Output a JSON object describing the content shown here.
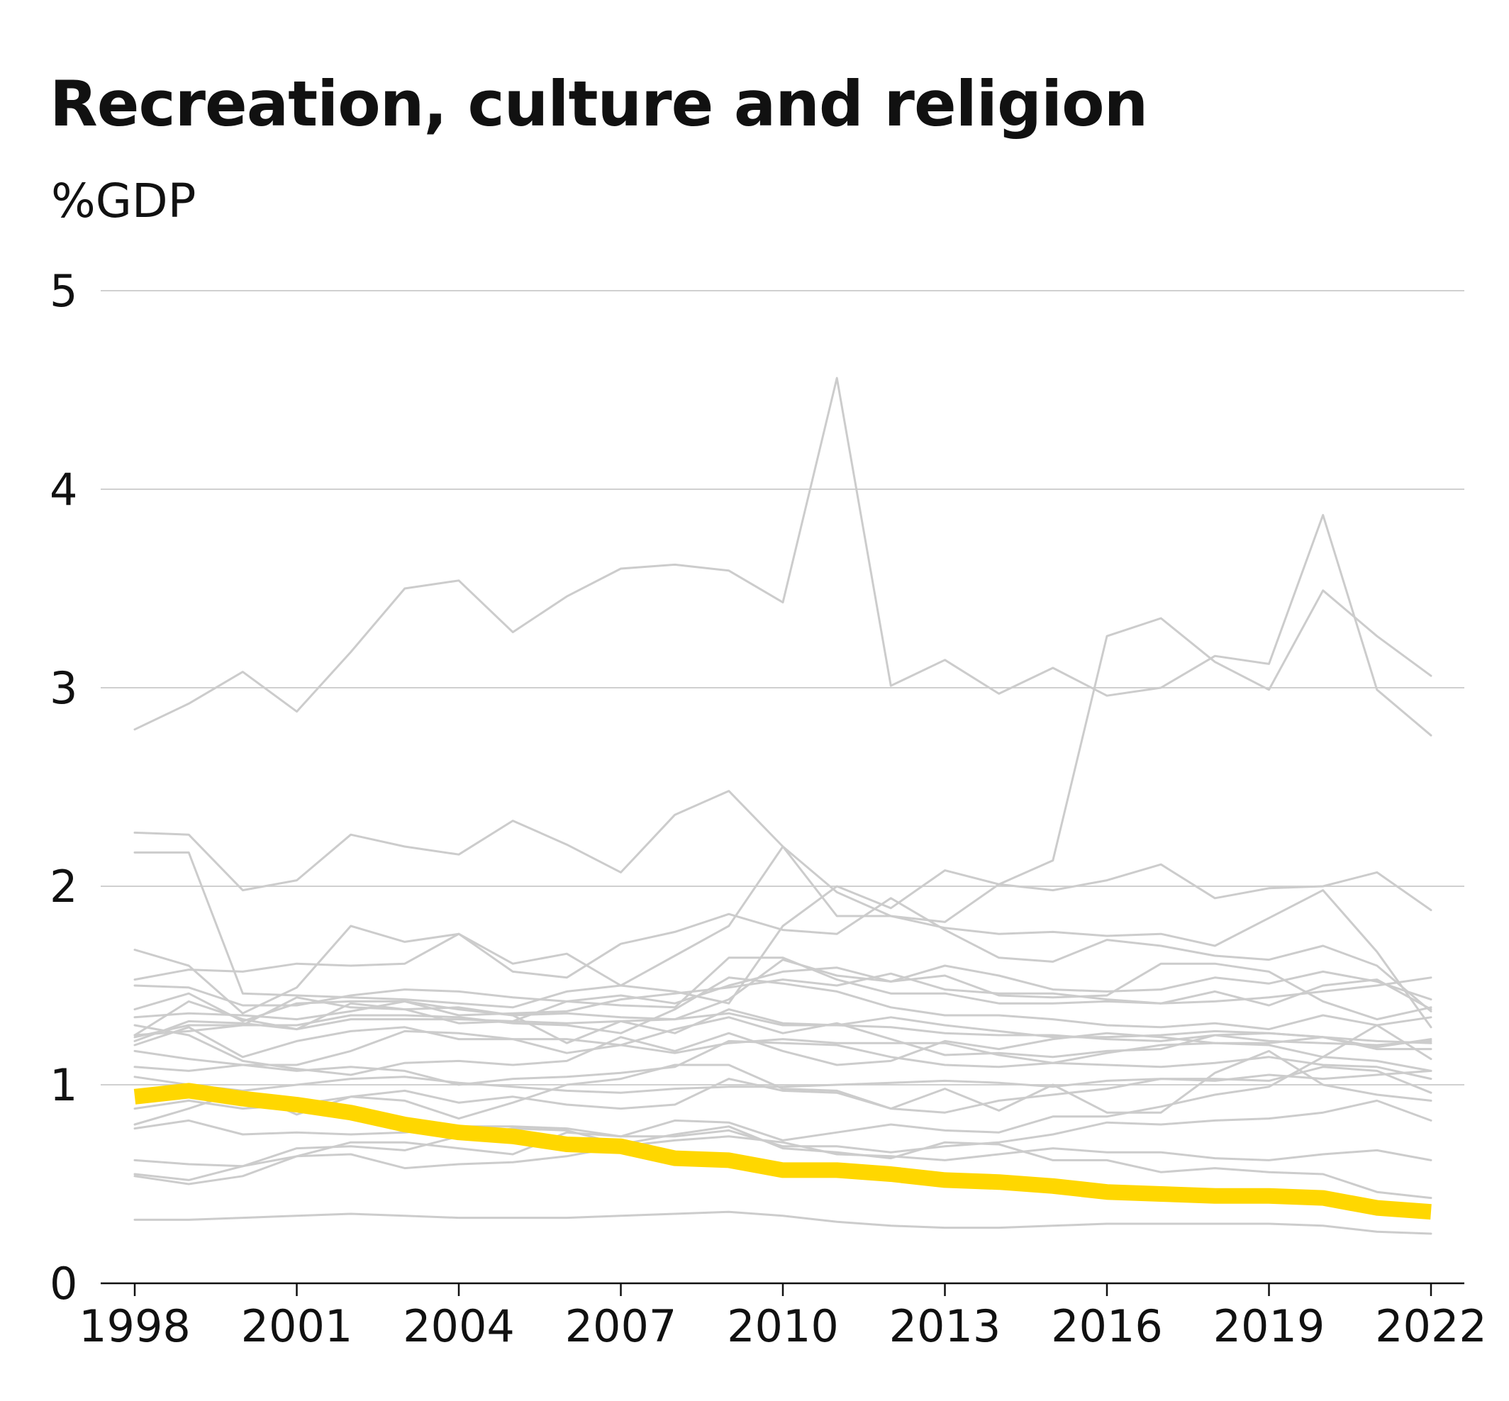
{
  "chart_data": {
    "type": "line",
    "title": "Recreation, culture and religion",
    "subtitle": "%GDP",
    "xlabel": "",
    "ylabel": "",
    "x": [
      1998,
      1999,
      2000,
      2001,
      2002,
      2003,
      2004,
      2005,
      2006,
      2007,
      2008,
      2009,
      2010,
      2011,
      2012,
      2013,
      2014,
      2015,
      2016,
      2017,
      2018,
      2019,
      2020,
      2021,
      2022
    ],
    "xticks": [
      1998,
      2001,
      2004,
      2007,
      2010,
      2013,
      2016,
      2019,
      2022
    ],
    "yticks": [
      0,
      1,
      2,
      3,
      4,
      5
    ],
    "ylim": [
      0,
      5
    ],
    "grid": true,
    "background_color": "#cccccc",
    "highlight_color": "#ffd700",
    "series": [
      {
        "values": [
          2.79,
          2.92,
          3.08,
          2.88,
          3.18,
          3.5,
          3.54,
          3.28,
          3.46,
          3.6,
          3.62,
          3.59,
          3.43,
          4.56,
          3.01,
          3.14,
          2.97,
          3.1,
          2.96,
          3.0,
          3.16,
          3.12,
          3.87,
          2.99,
          2.76
        ]
      },
      {
        "values": [
          2.27,
          2.26,
          1.98,
          2.03,
          2.26,
          2.2,
          2.16,
          2.33,
          2.21,
          2.07,
          2.36,
          2.48,
          2.2,
          1.85,
          1.85,
          1.82,
          2.01,
          2.13,
          3.26,
          3.35,
          3.13,
          2.99,
          3.49,
          3.26,
          3.06
        ]
      },
      {
        "values": [
          2.17,
          2.17,
          1.46,
          1.45,
          1.44,
          1.43,
          1.41,
          1.39,
          1.47,
          1.5,
          1.47,
          1.41,
          1.8,
          2.0,
          1.89,
          2.08,
          2.01,
          1.98,
          2.03,
          2.11,
          1.94,
          1.99,
          2.0,
          2.07,
          1.88
        ]
      },
      {
        "values": [
          1.68,
          1.6,
          1.36,
          1.49,
          1.8,
          1.72,
          1.76,
          1.61,
          1.66,
          1.5,
          1.65,
          1.8,
          2.2,
          1.97,
          1.85,
          1.79,
          1.76,
          1.77,
          1.75,
          1.76,
          1.7,
          1.84,
          1.98,
          1.67,
          1.29
        ]
      },
      {
        "values": [
          1.53,
          1.58,
          1.57,
          1.61,
          1.6,
          1.61,
          1.76,
          1.57,
          1.54,
          1.71,
          1.77,
          1.86,
          1.78,
          1.76,
          1.94,
          1.78,
          1.64,
          1.62,
          1.73,
          1.7,
          1.65,
          1.63,
          1.7,
          1.6,
          1.37
        ]
      },
      {
        "values": [
          1.5,
          1.49,
          1.4,
          1.4,
          1.45,
          1.48,
          1.47,
          1.44,
          1.42,
          1.45,
          1.41,
          1.5,
          1.57,
          1.59,
          1.52,
          1.6,
          1.55,
          1.48,
          1.47,
          1.48,
          1.54,
          1.51,
          1.57,
          1.52,
          1.43
        ]
      },
      {
        "values": [
          1.38,
          1.46,
          1.32,
          1.41,
          1.42,
          1.42,
          1.38,
          1.35,
          1.36,
          1.34,
          1.33,
          1.43,
          1.63,
          1.55,
          1.52,
          1.55,
          1.45,
          1.44,
          1.45,
          1.61,
          1.61,
          1.57,
          1.42,
          1.33,
          1.39
        ]
      },
      {
        "values": [
          1.34,
          1.36,
          1.35,
          1.33,
          1.37,
          1.42,
          1.35,
          1.36,
          1.37,
          1.43,
          1.46,
          1.49,
          1.53,
          1.5,
          1.56,
          1.48,
          1.46,
          1.46,
          1.43,
          1.41,
          1.42,
          1.44,
          1.47,
          1.5,
          1.54
        ]
      },
      {
        "values": [
          1.25,
          1.42,
          1.33,
          1.28,
          1.41,
          1.38,
          1.31,
          1.32,
          1.42,
          1.4,
          1.39,
          1.64,
          1.64,
          1.53,
          1.46,
          1.46,
          1.41,
          1.41,
          1.42,
          1.41,
          1.47,
          1.4,
          1.5,
          1.53,
          1.38
        ]
      },
      {
        "values": [
          1.24,
          1.3,
          1.3,
          1.3,
          1.35,
          1.35,
          1.34,
          1.31,
          1.3,
          1.26,
          1.38,
          1.54,
          1.51,
          1.47,
          1.39,
          1.35,
          1.35,
          1.33,
          1.3,
          1.29,
          1.31,
          1.28,
          1.35,
          1.3,
          1.34
        ]
      },
      {
        "values": [
          1.22,
          1.32,
          1.31,
          1.28,
          1.33,
          1.33,
          1.33,
          1.32,
          1.31,
          1.32,
          1.33,
          1.36,
          1.3,
          1.3,
          1.34,
          1.3,
          1.27,
          1.24,
          1.24,
          1.25,
          1.27,
          1.26,
          1.24,
          1.19,
          1.23
        ]
      },
      {
        "values": [
          1.25,
          1.27,
          1.3,
          1.44,
          1.39,
          1.38,
          1.39,
          1.35,
          1.21,
          1.32,
          1.26,
          1.38,
          1.31,
          1.3,
          1.29,
          1.26,
          1.25,
          1.25,
          1.23,
          1.22,
          1.25,
          1.22,
          1.21,
          1.2,
          1.22
        ]
      },
      {
        "values": [
          1.17,
          1.13,
          1.1,
          1.1,
          1.17,
          1.27,
          1.26,
          1.23,
          1.23,
          1.2,
          1.28,
          1.34,
          1.26,
          1.31,
          1.23,
          1.15,
          1.16,
          1.14,
          1.17,
          1.18,
          1.25,
          1.26,
          1.24,
          1.18,
          1.18
        ]
      },
      {
        "values": [
          1.2,
          1.29,
          1.14,
          1.22,
          1.27,
          1.29,
          1.23,
          1.23,
          1.16,
          1.2,
          1.16,
          1.21,
          1.23,
          1.21,
          1.21,
          1.21,
          1.15,
          1.11,
          1.16,
          1.2,
          1.21,
          1.21,
          1.24,
          1.22,
          1.21
        ]
      },
      {
        "values": [
          1.3,
          1.25,
          1.12,
          1.08,
          1.05,
          1.11,
          1.12,
          1.1,
          1.12,
          1.24,
          1.17,
          1.26,
          1.17,
          1.1,
          1.12,
          1.22,
          1.18,
          1.23,
          1.26,
          1.24,
          1.21,
          1.2,
          1.14,
          1.12,
          1.07
        ]
      },
      {
        "values": [
          1.09,
          1.07,
          1.1,
          1.07,
          1.09,
          1.07,
          1.0,
          1.03,
          1.04,
          1.06,
          1.09,
          1.22,
          1.21,
          1.2,
          1.14,
          1.1,
          1.09,
          1.11,
          1.1,
          1.09,
          1.11,
          1.14,
          1.1,
          1.09,
          1.03
        ]
      },
      {
        "values": [
          0.88,
          0.92,
          0.88,
          0.9,
          0.94,
          0.97,
          0.91,
          0.94,
          0.9,
          0.88,
          0.9,
          1.03,
          0.97,
          0.96,
          0.88,
          0.86,
          0.92,
          0.95,
          0.98,
          1.03,
          1.03,
          1.02,
          1.09,
          1.07,
          0.96
        ]
      },
      {
        "values": [
          1.04,
          1.0,
          0.97,
          1.0,
          1.03,
          1.04,
          1.01,
          0.99,
          0.97,
          0.96,
          0.98,
          0.99,
          0.99,
          1.0,
          1.01,
          1.02,
          1.01,
          0.99,
          1.02,
          1.03,
          1.02,
          1.05,
          1.03,
          1.05,
          1.07
        ]
      },
      {
        "values": [
          0.8,
          0.88,
          0.97,
          0.85,
          0.94,
          0.92,
          0.83,
          0.91,
          1.0,
          1.03,
          1.1,
          1.1,
          0.98,
          0.97,
          0.88,
          0.98,
          0.87,
          1.0,
          0.86,
          0.86,
          1.06,
          1.17,
          1.0,
          0.95,
          0.92
        ]
      },
      {
        "values": [
          0.78,
          0.82,
          0.75,
          0.76,
          0.75,
          0.76,
          0.79,
          0.79,
          0.78,
          0.74,
          0.82,
          0.81,
          0.72,
          0.76,
          0.8,
          0.77,
          0.76,
          0.84,
          0.84,
          0.89,
          0.95,
          0.99,
          1.14,
          1.3,
          1.13
        ]
      },
      {
        "values": [
          0.62,
          0.6,
          0.59,
          0.64,
          0.71,
          0.71,
          0.68,
          0.65,
          0.76,
          0.74,
          0.74,
          0.77,
          0.69,
          0.69,
          0.66,
          0.69,
          0.71,
          0.75,
          0.81,
          0.8,
          0.82,
          0.83,
          0.86,
          0.92,
          0.82
        ]
      },
      {
        "values": [
          0.55,
          0.52,
          0.59,
          0.68,
          0.69,
          0.67,
          0.74,
          0.78,
          0.77,
          0.7,
          0.75,
          0.79,
          0.68,
          0.66,
          0.63,
          0.71,
          0.7,
          0.62,
          0.62,
          0.56,
          0.58,
          0.56,
          0.55,
          0.46,
          0.43
        ]
      },
      {
        "values": [
          0.54,
          0.5,
          0.54,
          0.64,
          0.65,
          0.58,
          0.6,
          0.61,
          0.64,
          0.69,
          0.72,
          0.74,
          0.71,
          0.65,
          0.64,
          0.62,
          0.65,
          0.68,
          0.66,
          0.66,
          0.63,
          0.62,
          0.65,
          0.67,
          0.62
        ]
      },
      {
        "values": [
          0.32,
          0.32,
          0.33,
          0.34,
          0.35,
          0.34,
          0.33,
          0.33,
          0.33,
          0.34,
          0.35,
          0.36,
          0.34,
          0.31,
          0.29,
          0.28,
          0.28,
          0.29,
          0.3,
          0.3,
          0.3,
          0.3,
          0.29,
          0.26,
          0.25
        ]
      },
      {
        "values": [
          0.94,
          0.97,
          0.93,
          0.9,
          0.86,
          0.8,
          0.76,
          0.74,
          0.7,
          0.69,
          0.63,
          0.62,
          0.57,
          0.57,
          0.55,
          0.52,
          0.51,
          0.49,
          0.46,
          0.45,
          0.44,
          0.44,
          0.43,
          0.38,
          0.36
        ],
        "highlight": true
      }
    ]
  }
}
